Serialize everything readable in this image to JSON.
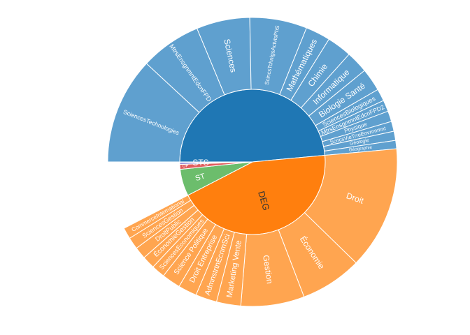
{
  "chart_data": {
    "type": "sunburst",
    "title": "",
    "inner": [
      {
        "name": "STS",
        "label": "STS",
        "value": 1340,
        "color": "#1f77b4"
      },
      {
        "name": "DEG",
        "label": "DEG",
        "value": 1210,
        "color": "#ff7f0e"
      },
      {
        "name": "ST",
        "label": "ST",
        "value": 165,
        "color": "#6cbd6c"
      },
      {
        "name": "OP",
        "label": "OP",
        "value": 30,
        "color": "#e05c5c"
      },
      {
        "name": "Other1",
        "label": "",
        "value": 9,
        "color": "#7b6fcf"
      },
      {
        "name": "Other2",
        "label": "",
        "value": 6,
        "color": "#5d7fd8"
      }
    ],
    "outer": {
      "STS": {
        "color": "#5fa0cf",
        "items": [
          {
            "label": "SciencesTechnologies",
            "value": 280
          },
          {
            "label": "MtrsEnsgnmntEdcnFPD",
            "value": 160
          },
          {
            "label": "Sciences",
            "value": 140
          },
          {
            "label": "ScincsTchnlgsActvtsPhS",
            "value": 150
          },
          {
            "label": "Mathématiques",
            "value": 65
          },
          {
            "label": "Chimie",
            "value": 65
          },
          {
            "label": "Informatique",
            "value": 58
          },
          {
            "label": "Biologie Santé",
            "value": 60
          },
          {
            "label": "SciencesBiologiques",
            "value": 32
          },
          {
            "label": "MtrsEnsgnmntEdcnFPD2",
            "value": 30
          },
          {
            "label": "Physique",
            "value": 28
          },
          {
            "label": "ScncsVieTrreEnvrnnmnt",
            "value": 26
          },
          {
            "label": "Géologie",
            "value": 24
          },
          {
            "label": "Géographie",
            "value": 22
          }
        ]
      },
      "DEG": {
        "color": "#ffa550",
        "items": [
          {
            "label": "Droit",
            "value": 330
          },
          {
            "label": "Économie",
            "value": 165
          },
          {
            "label": "Gestion",
            "value": 170
          },
          {
            "label": "Marketing Vente",
            "value": 65
          },
          {
            "label": "AdmnstrtnEcnmSci",
            "value": 57
          },
          {
            "label": "Droit Entreprise",
            "value": 50
          },
          {
            "label": "Science Politique",
            "value": 50
          },
          {
            "label": "SciencesEconomiques",
            "value": 36
          },
          {
            "label": "ÉconomieGestion",
            "value": 34
          },
          {
            "label": "DroitPublic",
            "value": 32
          },
          {
            "label": "SciencesGestion",
            "value": 32
          },
          {
            "label": "CommerceInternational",
            "value": 30
          }
        ]
      }
    }
  }
}
